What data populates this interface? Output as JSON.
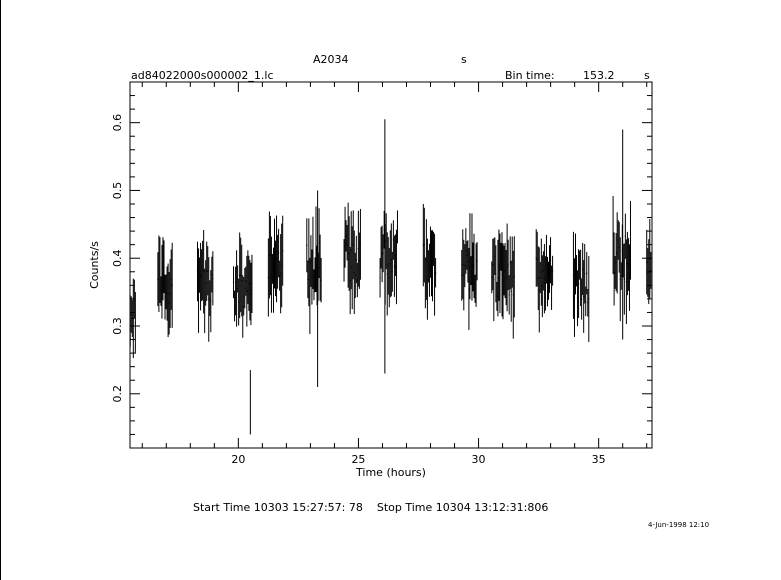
{
  "header": {
    "object": "A2034",
    "unit_top": "s",
    "filename": "ad84022000s000002_1.lc",
    "bin_label": "Bin time:",
    "bin_value": "153.2",
    "bin_unit": "s"
  },
  "footer": {
    "times": "Start Time 10303 15:27:57: 78    Stop Time 10304 13:12:31:806",
    "stamp": "4-Jun-1998 12:10"
  },
  "chart_data": {
    "type": "scatter",
    "xlabel": "Time (hours)",
    "ylabel": "Counts/s",
    "xlim": [
      15.49,
      37.22
    ],
    "ylim": [
      0.12,
      0.66
    ],
    "xticks": [
      20,
      25,
      30,
      35
    ],
    "yticks": [
      0.2,
      0.3,
      0.4,
      0.5,
      0.6
    ],
    "xtick_labels": [
      "20",
      "25",
      "30",
      "35"
    ],
    "ytick_labels": [
      "0.2",
      "0.3",
      "0.4",
      "0.5",
      "0.6"
    ],
    "style": "vertical error bars",
    "segments": [
      {
        "x_start": 15.5,
        "x_end": 15.75,
        "center": 0.33,
        "spread": 0.055
      },
      {
        "x_start": 16.65,
        "x_end": 17.25,
        "center": 0.36,
        "spread": 0.05
      },
      {
        "x_start": 18.3,
        "x_end": 18.95,
        "center": 0.355,
        "spread": 0.045
      },
      {
        "x_start": 19.8,
        "x_end": 20.6,
        "center": 0.35,
        "spread": 0.045
      },
      {
        "x_start": 21.25,
        "x_end": 21.85,
        "center": 0.39,
        "spread": 0.04
      },
      {
        "x_start": 22.85,
        "x_end": 23.45,
        "center": 0.385,
        "spread": 0.07
      },
      {
        "x_start": 24.4,
        "x_end": 25.1,
        "center": 0.4,
        "spread": 0.06
      },
      {
        "x_start": 25.9,
        "x_end": 26.65,
        "center": 0.41,
        "spread": 0.065
      },
      {
        "x_start": 27.7,
        "x_end": 28.25,
        "center": 0.395,
        "spread": 0.055
      },
      {
        "x_start": 29.3,
        "x_end": 29.95,
        "center": 0.385,
        "spread": 0.055
      },
      {
        "x_start": 30.55,
        "x_end": 31.5,
        "center": 0.375,
        "spread": 0.055
      },
      {
        "x_start": 32.4,
        "x_end": 33.1,
        "center": 0.38,
        "spread": 0.055
      },
      {
        "x_start": 33.95,
        "x_end": 34.6,
        "center": 0.36,
        "spread": 0.055
      },
      {
        "x_start": 35.6,
        "x_end": 36.35,
        "center": 0.4,
        "spread": 0.06
      },
      {
        "x_start": 37.0,
        "x_end": 37.2,
        "center": 0.41,
        "spread": 0.06
      }
    ],
    "notable_points": [
      {
        "x": 20.5,
        "y_low": 0.14,
        "y_high": 0.235
      },
      {
        "x": 23.3,
        "y_low": 0.21,
        "y_high": 0.5
      },
      {
        "x": 26.1,
        "y_low": 0.23,
        "y_high": 0.605
      },
      {
        "x": 36.0,
        "y_low": 0.28,
        "y_high": 0.59
      }
    ]
  }
}
